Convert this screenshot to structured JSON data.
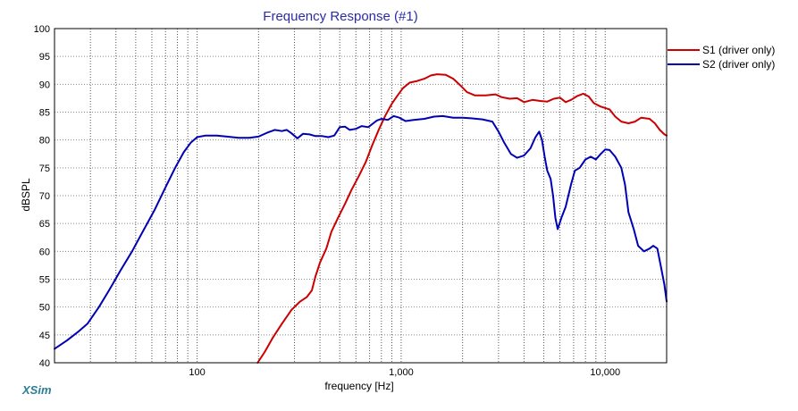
{
  "app": {
    "brand": "XSim"
  },
  "chart_data": {
    "type": "line",
    "title": "Frequency Response (#1)",
    "xlabel": "frequency [Hz]",
    "ylabel": "dBSPL",
    "xscale": "log",
    "xlim": [
      20,
      20000
    ],
    "ylim": [
      40,
      100
    ],
    "grid": true,
    "legend_placement": "top-right",
    "x_tick_labels": [
      {
        "value": 100,
        "label": "100"
      },
      {
        "value": 1000,
        "label": "1,000"
      },
      {
        "value": 10000,
        "label": "10,000"
      }
    ],
    "y_tick_labels": [
      {
        "value": 40,
        "label": "40"
      },
      {
        "value": 45,
        "label": "45"
      },
      {
        "value": 50,
        "label": "50"
      },
      {
        "value": 55,
        "label": "55"
      },
      {
        "value": 60,
        "label": "60"
      },
      {
        "value": 65,
        "label": "65"
      },
      {
        "value": 70,
        "label": "70"
      },
      {
        "value": 75,
        "label": "75"
      },
      {
        "value": 80,
        "label": "80"
      },
      {
        "value": 85,
        "label": "85"
      },
      {
        "value": 90,
        "label": "90"
      },
      {
        "value": 95,
        "label": "95"
      },
      {
        "value": 100,
        "label": "100"
      }
    ],
    "series": [
      {
        "name": "S1 (driver only)",
        "color": "#cc0000",
        "points": [
          [
            198,
            40.0
          ],
          [
            215,
            42.0
          ],
          [
            235,
            44.5
          ],
          [
            260,
            47.0
          ],
          [
            290,
            49.5
          ],
          [
            320,
            51.0
          ],
          [
            345,
            51.8
          ],
          [
            365,
            53.0
          ],
          [
            380,
            55.5
          ],
          [
            400,
            58.0
          ],
          [
            430,
            60.5
          ],
          [
            455,
            63.5
          ],
          [
            490,
            66.0
          ],
          [
            530,
            68.5
          ],
          [
            570,
            71.0
          ],
          [
            620,
            73.5
          ],
          [
            670,
            76.0
          ],
          [
            720,
            79.0
          ],
          [
            780,
            82.0
          ],
          [
            840,
            84.5
          ],
          [
            900,
            86.5
          ],
          [
            960,
            88.0
          ],
          [
            1020,
            89.3
          ],
          [
            1100,
            90.3
          ],
          [
            1200,
            90.6
          ],
          [
            1300,
            91.0
          ],
          [
            1400,
            91.6
          ],
          [
            1500,
            91.8
          ],
          [
            1650,
            91.7
          ],
          [
            1800,
            91.0
          ],
          [
            1950,
            89.8
          ],
          [
            2100,
            88.6
          ],
          [
            2300,
            88.0
          ],
          [
            2600,
            88.0
          ],
          [
            2900,
            88.2
          ],
          [
            3100,
            87.7
          ],
          [
            3400,
            87.4
          ],
          [
            3700,
            87.5
          ],
          [
            4000,
            86.8
          ],
          [
            4400,
            87.2
          ],
          [
            4800,
            87.0
          ],
          [
            5200,
            86.9
          ],
          [
            5600,
            87.4
          ],
          [
            6000,
            87.6
          ],
          [
            6400,
            86.8
          ],
          [
            6800,
            87.2
          ],
          [
            7300,
            87.9
          ],
          [
            7800,
            88.3
          ],
          [
            8300,
            87.8
          ],
          [
            8800,
            86.6
          ],
          [
            9500,
            86.0
          ],
          [
            10500,
            85.5
          ],
          [
            11200,
            84.2
          ],
          [
            12000,
            83.3
          ],
          [
            13000,
            83.0
          ],
          [
            14000,
            83.3
          ],
          [
            15000,
            84.0
          ],
          [
            16500,
            83.8
          ],
          [
            17500,
            83.0
          ],
          [
            18500,
            81.8
          ],
          [
            19500,
            81.0
          ],
          [
            20000,
            80.8
          ]
        ]
      },
      {
        "name": "S2 (driver only)",
        "color": "#0000b4",
        "points": [
          [
            20,
            42.5
          ],
          [
            23,
            44.0
          ],
          [
            26,
            45.5
          ],
          [
            29,
            47.0
          ],
          [
            33,
            50.0
          ],
          [
            37,
            53.0
          ],
          [
            42,
            56.5
          ],
          [
            48,
            60.0
          ],
          [
            55,
            64.0
          ],
          [
            62,
            67.5
          ],
          [
            70,
            71.5
          ],
          [
            78,
            75.0
          ],
          [
            86,
            77.8
          ],
          [
            93,
            79.5
          ],
          [
            100,
            80.5
          ],
          [
            110,
            80.8
          ],
          [
            125,
            80.8
          ],
          [
            140,
            80.6
          ],
          [
            160,
            80.4
          ],
          [
            180,
            80.4
          ],
          [
            200,
            80.6
          ],
          [
            220,
            81.3
          ],
          [
            240,
            81.8
          ],
          [
            260,
            81.6
          ],
          [
            275,
            81.8
          ],
          [
            290,
            81.2
          ],
          [
            310,
            80.3
          ],
          [
            330,
            81.1
          ],
          [
            355,
            81.0
          ],
          [
            380,
            80.7
          ],
          [
            410,
            80.7
          ],
          [
            440,
            80.5
          ],
          [
            470,
            80.8
          ],
          [
            500,
            82.3
          ],
          [
            530,
            82.4
          ],
          [
            560,
            81.8
          ],
          [
            600,
            82.0
          ],
          [
            640,
            82.5
          ],
          [
            690,
            82.3
          ],
          [
            730,
            83.0
          ],
          [
            760,
            83.5
          ],
          [
            800,
            83.8
          ],
          [
            860,
            83.6
          ],
          [
            920,
            84.3
          ],
          [
            980,
            84.0
          ],
          [
            1050,
            83.4
          ],
          [
            1150,
            83.6
          ],
          [
            1300,
            83.8
          ],
          [
            1450,
            84.2
          ],
          [
            1600,
            84.3
          ],
          [
            1800,
            84.0
          ],
          [
            2000,
            84.0
          ],
          [
            2200,
            83.9
          ],
          [
            2500,
            83.7
          ],
          [
            2800,
            83.3
          ],
          [
            3000,
            81.5
          ],
          [
            3200,
            79.5
          ],
          [
            3450,
            77.5
          ],
          [
            3700,
            76.8
          ],
          [
            4000,
            77.2
          ],
          [
            4300,
            78.5
          ],
          [
            4550,
            80.5
          ],
          [
            4750,
            81.5
          ],
          [
            4900,
            80.0
          ],
          [
            5050,
            77.0
          ],
          [
            5200,
            74.5
          ],
          [
            5400,
            73.0
          ],
          [
            5550,
            70.0
          ],
          [
            5700,
            66.0
          ],
          [
            5850,
            64.0
          ],
          [
            6100,
            66.0
          ],
          [
            6400,
            68.0
          ],
          [
            6800,
            72.0
          ],
          [
            7100,
            74.5
          ],
          [
            7500,
            75.0
          ],
          [
            8000,
            76.5
          ],
          [
            8500,
            77.0
          ],
          [
            9000,
            76.5
          ],
          [
            9500,
            77.5
          ],
          [
            10000,
            78.3
          ],
          [
            10500,
            78.2
          ],
          [
            11200,
            77.0
          ],
          [
            12000,
            75.0
          ],
          [
            12500,
            72.0
          ],
          [
            13000,
            67.0
          ],
          [
            13800,
            64.0
          ],
          [
            14500,
            61.0
          ],
          [
            15500,
            60.0
          ],
          [
            16500,
            60.5
          ],
          [
            17200,
            61.0
          ],
          [
            18000,
            60.5
          ],
          [
            18800,
            57.0
          ],
          [
            19500,
            54.0
          ],
          [
            20000,
            51.0
          ]
        ]
      }
    ]
  }
}
